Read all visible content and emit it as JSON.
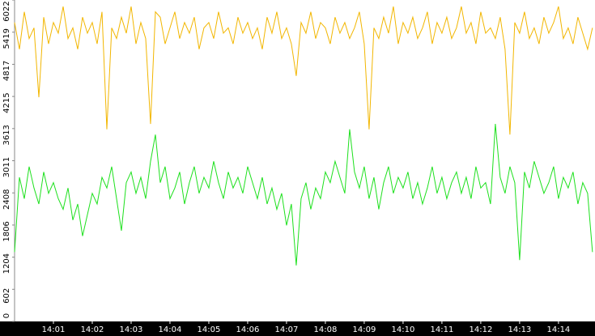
{
  "chart_data": {
    "type": "line",
    "x": [
      0,
      0.125,
      0.25,
      0.375,
      0.5,
      0.625,
      0.75,
      0.875,
      1,
      1.125,
      1.25,
      1.375,
      1.5,
      1.625,
      1.75,
      1.875,
      2,
      2.125,
      2.25,
      2.375,
      2.5,
      2.625,
      2.75,
      2.875,
      3,
      3.125,
      3.25,
      3.375,
      3.5,
      3.625,
      3.75,
      3.875,
      4,
      4.125,
      4.25,
      4.375,
      4.5,
      4.625,
      4.75,
      4.875,
      5,
      5.125,
      5.25,
      5.375,
      5.5,
      5.625,
      5.75,
      5.875,
      6,
      6.125,
      6.25,
      6.375,
      6.5,
      6.625,
      6.75,
      6.875,
      7,
      7.125,
      7.25,
      7.375,
      7.5,
      7.625,
      7.75,
      7.875,
      8,
      8.125,
      8.25,
      8.375,
      8.5,
      8.625,
      8.75,
      8.875,
      9,
      9.125,
      9.25,
      9.375,
      9.5,
      9.625,
      9.75,
      9.875,
      10,
      10.125,
      10.25,
      10.375,
      10.5,
      10.625,
      10.75,
      10.875,
      11,
      11.125,
      11.25,
      11.375,
      11.5,
      11.625,
      11.75,
      11.875,
      12,
      12.125,
      12.25,
      12.375,
      12.5,
      12.625,
      12.75,
      12.875,
      13,
      13.125,
      13.25,
      13.375,
      13.5,
      13.625,
      13.75,
      13.875,
      14,
      14.125,
      14.25,
      14.375,
      14.5,
      14.625,
      14.75,
      14.875
    ],
    "series": [
      {
        "color": "#f2b600",
        "values": [
          5600,
          5100,
          5800,
          5300,
          5500,
          4200,
          5700,
          5200,
          5600,
          5400,
          5900,
          5300,
          5500,
          5100,
          5700,
          5400,
          5600,
          5200,
          5800,
          3600,
          5500,
          5300,
          5700,
          5400,
          5900,
          5200,
          5600,
          5300,
          3700,
          5800,
          5700,
          5200,
          5500,
          5800,
          5300,
          5600,
          5400,
          5700,
          5100,
          5500,
          5600,
          5300,
          5800,
          5400,
          5500,
          5200,
          5700,
          5400,
          5600,
          5300,
          5500,
          5100,
          5700,
          5400,
          5800,
          5300,
          5500,
          5200,
          4600,
          5600,
          5400,
          5800,
          5300,
          5600,
          5500,
          5200,
          5700,
          5400,
          5600,
          5300,
          5500,
          5800,
          5200,
          3600,
          5500,
          5300,
          5700,
          5400,
          5900,
          5200,
          5600,
          5400,
          5700,
          5300,
          5500,
          5800,
          5200,
          5600,
          5400,
          5700,
          5300,
          5500,
          5900,
          5400,
          5600,
          5200,
          5800,
          5400,
          5500,
          5300,
          5700,
          5100,
          3500,
          5600,
          5400,
          5800,
          5300,
          5500,
          5200,
          5700,
          5400,
          5600,
          5900,
          5300,
          5500,
          5200,
          5700,
          5400,
          5100,
          5500
        ]
      },
      {
        "color": "#1de01d",
        "values": [
          1300,
          2700,
          2300,
          2900,
          2500,
          2200,
          2800,
          2400,
          2600,
          2300,
          2100,
          2500,
          1900,
          2200,
          1600,
          2000,
          2400,
          2200,
          2700,
          2500,
          2900,
          2300,
          1700,
          2600,
          2800,
          2400,
          2700,
          2300,
          3000,
          3500,
          2600,
          2900,
          2300,
          2500,
          2800,
          2200,
          2600,
          2900,
          2400,
          2700,
          2500,
          3000,
          2600,
          2300,
          2800,
          2500,
          2700,
          2400,
          2900,
          2600,
          2300,
          2700,
          2200,
          2500,
          2100,
          2400,
          1800,
          2200,
          1050,
          2300,
          2600,
          2100,
          2500,
          2300,
          2800,
          2600,
          3000,
          2700,
          2400,
          3600,
          2800,
          2500,
          2900,
          2300,
          2700,
          2100,
          2600,
          2900,
          2400,
          2700,
          2500,
          2800,
          2300,
          2600,
          2200,
          2500,
          2900,
          2400,
          2700,
          2300,
          2600,
          2800,
          2400,
          2700,
          2300,
          2900,
          2500,
          2600,
          2200,
          3700,
          2700,
          2400,
          2900,
          2600,
          1150,
          2800,
          2500,
          3000,
          2700,
          2400,
          2600,
          2900,
          2300,
          2700,
          2500,
          2800,
          2200,
          2600,
          2400,
          1300
        ]
      }
    ],
    "xlim": [
      0,
      14.94
    ],
    "xticks": [
      {
        "value": 1,
        "label": "14:01"
      },
      {
        "value": 2,
        "label": "14:02"
      },
      {
        "value": 3,
        "label": "14:03"
      },
      {
        "value": 4,
        "label": "14:04"
      },
      {
        "value": 5,
        "label": "14:05"
      },
      {
        "value": 6,
        "label": "14:06"
      },
      {
        "value": 7,
        "label": "14:07"
      },
      {
        "value": 8,
        "label": "14:08"
      },
      {
        "value": 9,
        "label": "14:09"
      },
      {
        "value": 10,
        "label": "14:10"
      },
      {
        "value": 11,
        "label": "14:11"
      },
      {
        "value": 12,
        "label": "14:12"
      },
      {
        "value": 13,
        "label": "14:13"
      },
      {
        "value": 14,
        "label": "14:14"
      }
    ],
    "ylim": [
      0,
      6022
    ],
    "yticks": [
      0,
      602,
      1204,
      1806,
      2408,
      3011,
      3613,
      4215,
      4817,
      5419,
      6022
    ]
  }
}
